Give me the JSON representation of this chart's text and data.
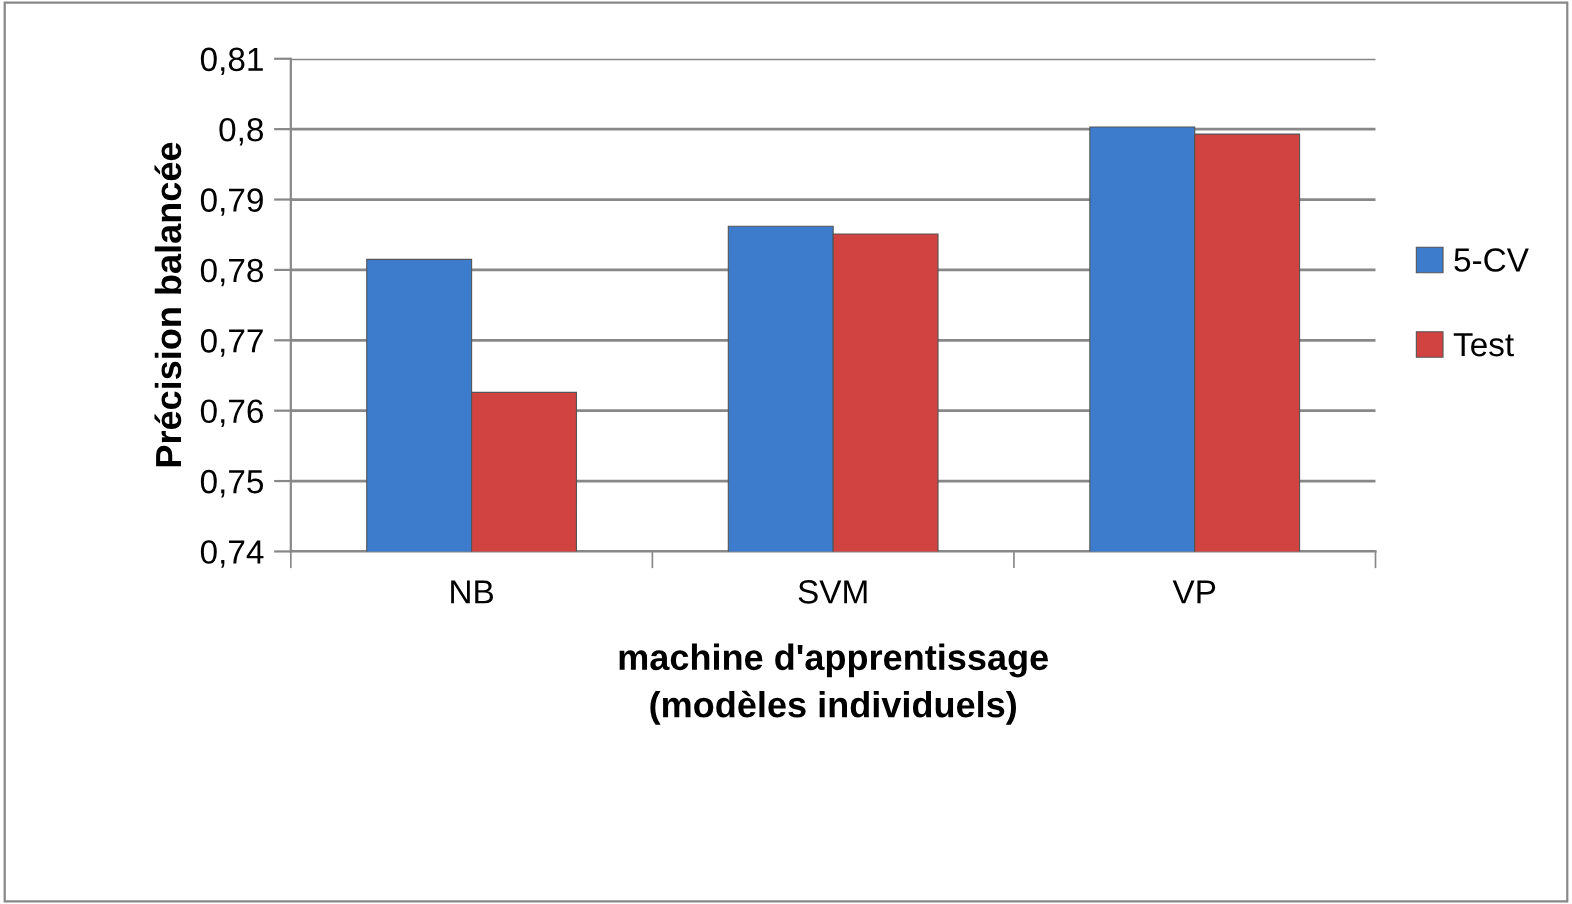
{
  "chart_data": {
    "type": "bar",
    "ylabel": "Précision balancée",
    "xlabel": "machine d'apprentissage\n(modèles individuels)",
    "categories": [
      "NB",
      "SVM",
      "VP"
    ],
    "series": [
      {
        "name": "5-CV",
        "color": "#3d7bcc",
        "values": [
          0.7815,
          0.7862,
          0.8003
        ]
      },
      {
        "name": "Test",
        "color": "#d04341",
        "values": [
          0.7626,
          0.7851,
          0.7993
        ]
      }
    ],
    "ylim": [
      0.74,
      0.81
    ],
    "yticks": [
      {
        "value": 0.74,
        "label": "0,74"
      },
      {
        "value": 0.75,
        "label": "0,75"
      },
      {
        "value": 0.76,
        "label": "0,76"
      },
      {
        "value": 0.77,
        "label": "0,77"
      },
      {
        "value": 0.78,
        "label": "0,78"
      },
      {
        "value": 0.79,
        "label": "0,79"
      },
      {
        "value": 0.8,
        "label": "0,8"
      },
      {
        "value": 0.81,
        "label": "0,81"
      }
    ],
    "grid": "y",
    "legend": "right"
  }
}
